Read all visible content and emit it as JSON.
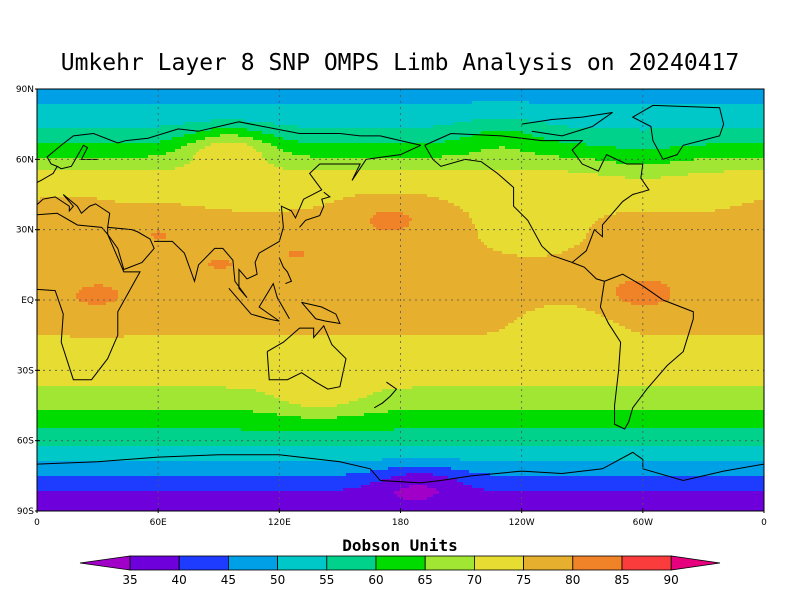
{
  "title": "Umkehr Layer 8 SNP OMPS Limb Analysis on 20240417",
  "lat_ticks": [
    "90N",
    "60N",
    "30N",
    "EQ",
    "30S",
    "60S",
    "90S"
  ],
  "lon_ticks": [
    "0",
    "60E",
    "120E",
    "180",
    "120W",
    "60W",
    "0"
  ],
  "colorbar": {
    "label": "Dobson Units",
    "levels": [
      35,
      40,
      45,
      50,
      55,
      60,
      65,
      70,
      75,
      80,
      85,
      90
    ],
    "colors": [
      "#a000c8",
      "#6e00dc",
      "#1e3cff",
      "#00a0e6",
      "#00c8c8",
      "#00d28c",
      "#00dc00",
      "#a0e632",
      "#e6dc32",
      "#e6af2d",
      "#f08228",
      "#fa3c3c",
      "#e6007d"
    ]
  },
  "chart_data": {
    "type": "heatmap",
    "title": "Umkehr Layer 8 SNP OMPS Limb Analysis on 20240417",
    "units": "Dobson Units",
    "x_range": [
      0,
      360
    ],
    "y_range": [
      -90,
      90
    ],
    "grid": true,
    "zonal_profile": [
      {
        "lat": 90,
        "value": 48
      },
      {
        "lat": 80,
        "value": 51
      },
      {
        "lat": 70,
        "value": 57
      },
      {
        "lat": 62,
        "value": 64
      },
      {
        "lat": 55,
        "value": 70
      },
      {
        "lat": 45,
        "value": 74
      },
      {
        "lat": 30,
        "value": 76
      },
      {
        "lat": 15,
        "value": 76
      },
      {
        "lat": 0,
        "value": 76
      },
      {
        "lat": -15,
        "value": 75
      },
      {
        "lat": -30,
        "value": 73
      },
      {
        "lat": -42,
        "value": 68
      },
      {
        "lat": -52,
        "value": 62
      },
      {
        "lat": -60,
        "value": 57
      },
      {
        "lat": -68,
        "value": 51
      },
      {
        "lat": -75,
        "value": 45
      },
      {
        "lat": -82,
        "value": 40
      },
      {
        "lat": -90,
        "value": 38
      }
    ],
    "anomalies": [
      {
        "lon": 190,
        "lat": -78,
        "value": 36
      },
      {
        "lon": 170,
        "lat": -85,
        "value": 38
      },
      {
        "lon": 30,
        "lat": 2,
        "value": 81
      },
      {
        "lon": 60,
        "lat": 28,
        "value": 80
      },
      {
        "lon": 90,
        "lat": 15,
        "value": 80
      },
      {
        "lon": 130,
        "lat": 20,
        "value": 80
      },
      {
        "lon": 175,
        "lat": 35,
        "value": 81
      },
      {
        "lon": 300,
        "lat": 3,
        "value": 82
      },
      {
        "lon": 15,
        "lat": 35,
        "value": 78
      },
      {
        "lon": 245,
        "lat": 30,
        "value": 71
      },
      {
        "lon": 265,
        "lat": -10,
        "value": 73
      },
      {
        "lon": 140,
        "lat": -42,
        "value": 73
      },
      {
        "lon": 95,
        "lat": 65,
        "value": 73
      },
      {
        "lon": 300,
        "lat": 60,
        "value": 63
      },
      {
        "lon": 230,
        "lat": 70,
        "value": 62
      }
    ]
  }
}
